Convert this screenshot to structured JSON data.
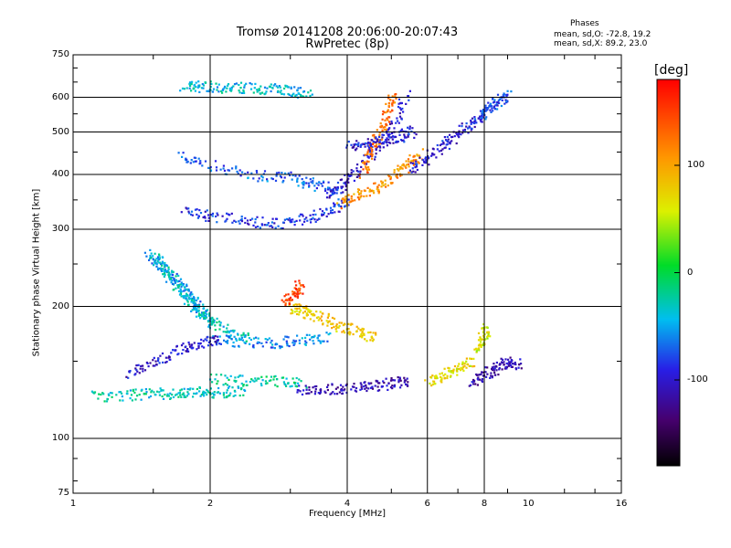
{
  "chart_data": {
    "type": "scatter",
    "title": "Tromsø 20141208 20:06:00-20:07:43",
    "subtitle": "RwPretec (8p)",
    "xlabel": "Frequency [MHz]",
    "ylabel": "Stationary phase Virtual Height [km]",
    "x_scale": "log2",
    "y_scale": "log",
    "xlim": [
      1,
      16
    ],
    "ylim": [
      75,
      750
    ],
    "x_ticks": [
      "1",
      "2",
      "4",
      "6",
      "8",
      "10",
      "16"
    ],
    "y_ticks": [
      "75",
      "100",
      "200",
      "300",
      "400",
      "500",
      "600",
      "750"
    ],
    "grid": true,
    "legend_text": {
      "title": "Phases",
      "line_o": "mean, sd,O: -72.8, 19.2",
      "line_x": "mean, sd,X:  89.2, 23.0"
    },
    "colorbar": {
      "unit": "[deg]",
      "range": [
        -180,
        180
      ],
      "ticks": [
        "100",
        "0",
        "-100"
      ],
      "colormap": "rainbow (black-violet-blue-cyan-green-yellow-red)"
    },
    "traces": [
      {
        "x": [
          1.75,
          1.9,
          2.1,
          2.4,
          2.7,
          3.0,
          3.3
        ],
        "y": [
          640,
          638,
          635,
          632,
          628,
          622,
          618
        ],
        "phase": -40
      },
      {
        "x": [
          1.7,
          2.0,
          2.5,
          3.0,
          3.4,
          3.8
        ],
        "y": [
          440,
          420,
          400,
          395,
          380,
          370
        ],
        "phase": -70
      },
      {
        "x": [
          1.75,
          2.0,
          2.4,
          2.8,
          3.2,
          3.6,
          4.0
        ],
        "y": [
          330,
          322,
          315,
          310,
          318,
          330,
          350
        ],
        "phase": -85
      },
      {
        "x": [
          3.6,
          3.9,
          4.2,
          4.6,
          5.0,
          5.4
        ],
        "y": [
          360,
          380,
          410,
          460,
          520,
          610
        ],
        "phase": -100
      },
      {
        "x": [
          3.8,
          4.2,
          4.6,
          5.0,
          5.4,
          5.8
        ],
        "y": [
          345,
          360,
          375,
          395,
          420,
          450
        ],
        "phase": 110
      },
      {
        "x": [
          4.3,
          4.5,
          4.7,
          4.9,
          5.0
        ],
        "y": [
          400,
          450,
          500,
          560,
          620
        ],
        "phase": 125
      },
      {
        "x": [
          4.0,
          4.4,
          4.8,
          5.2,
          5.6
        ],
        "y": [
          465,
          470,
          480,
          490,
          505
        ],
        "phase": -95
      },
      {
        "x": [
          1.45,
          1.55,
          1.65,
          1.75,
          1.85,
          1.95
        ],
        "y": [
          265,
          250,
          235,
          220,
          205,
          190
        ],
        "phase": -55
      },
      {
        "x": [
          1.5,
          1.6,
          1.7,
          1.8,
          1.9,
          2.0,
          2.2,
          2.4
        ],
        "y": [
          260,
          240,
          220,
          205,
          195,
          185,
          175,
          170
        ],
        "phase": -35
      },
      {
        "x": [
          2.0,
          2.4,
          2.8,
          3.2,
          3.6
        ],
        "y": [
          168,
          167,
          166,
          168,
          172
        ],
        "phase": -60
      },
      {
        "x": [
          3.0,
          3.2,
          3.5,
          3.8,
          4.2,
          4.6
        ],
        "y": [
          200,
          195,
          190,
          182,
          176,
          170
        ],
        "phase": 80
      },
      {
        "x": [
          2.9,
          3.05,
          3.15
        ],
        "y": [
          205,
          215,
          225
        ],
        "phase": 150
      },
      {
        "x": [
          1.1,
          1.3,
          1.5,
          1.7,
          1.9,
          2.1,
          2.4
        ],
        "y": [
          125,
          126,
          127,
          127,
          128,
          128,
          129
        ],
        "phase": -30
      },
      {
        "x": [
          2.0,
          2.4,
          2.8,
          3.2
        ],
        "y": [
          137,
          136,
          136,
          135
        ],
        "phase": -25
      },
      {
        "x": [
          3.1,
          3.5,
          4.0,
          4.5,
          5.0,
          5.5
        ],
        "y": [
          130,
          130,
          131,
          132,
          134,
          136
        ],
        "phase": -110
      },
      {
        "x": [
          1.3,
          1.5,
          1.7,
          1.9,
          2.1
        ],
        "y": [
          140,
          150,
          160,
          165,
          170
        ],
        "phase": -100
      },
      {
        "x": [
          6.0,
          6.5,
          7.0,
          7.5
        ],
        "y": [
          136,
          140,
          145,
          150
        ],
        "phase": 70
      },
      {
        "x": [
          7.5,
          8.0,
          8.5,
          9.0,
          9.5
        ],
        "y": [
          135,
          140,
          145,
          150,
          148
        ],
        "phase": -110
      },
      {
        "x": [
          7.7,
          7.9,
          8.1
        ],
        "y": [
          160,
          170,
          180
        ],
        "phase": 60
      },
      {
        "x": [
          5.5,
          6.0,
          6.5,
          7.0,
          7.5
        ],
        "y": [
          410,
          440,
          470,
          500,
          530
        ],
        "phase": -95
      },
      {
        "x": [
          7.6,
          7.9,
          8.2,
          8.6,
          9.0
        ],
        "y": [
          530,
          550,
          570,
          590,
          610
        ],
        "phase": -80
      }
    ]
  }
}
